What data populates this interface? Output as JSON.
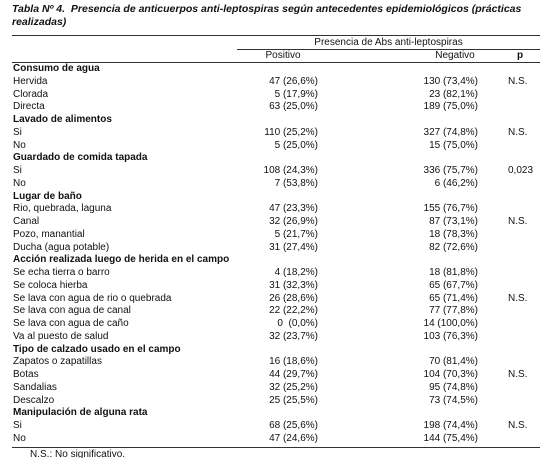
{
  "title": {
    "label": "Tabla Nº 4.",
    "text": "Presencia de anticuerpos anti-leptospiras según antecedentes epidemiológicos (prácticas realizadas)"
  },
  "header": {
    "group": "Presencia de Abs anti-leptospiras",
    "positivo": "Positivo",
    "negativo": "Negativo",
    "p": "p"
  },
  "groups": [
    {
      "title": "Consumo de agua",
      "rows": [
        {
          "label": "Hervida",
          "positivo": "47 (26,6%)",
          "negativo": "130 (73,4%)",
          "p": "N.S."
        },
        {
          "label": "Clorada",
          "positivo": "5 (17,9%)",
          "negativo": "23 (82,1%)"
        },
        {
          "label": "Directa",
          "positivo": "63 (25,0%)",
          "negativo": "189 (75,0%)"
        }
      ]
    },
    {
      "title": "Lavado de alimentos",
      "rows": [
        {
          "label": "Si",
          "positivo": "110 (25,2%)",
          "negativo": "327 (74,8%)",
          "p": "N.S."
        },
        {
          "label": "No",
          "positivo": "5 (25,0%)",
          "negativo": "15 (75,0%)"
        }
      ]
    },
    {
      "title": "Guardado de comida tapada",
      "rows": [
        {
          "label": "Si",
          "positivo": "108 (24,3%)",
          "negativo": "336 (75,7%)",
          "p": "0,023"
        },
        {
          "label": "No",
          "positivo": "7 (53,8%)",
          "negativo": "6 (46,2%)"
        }
      ]
    },
    {
      "title": "Lugar de baño",
      "rows": [
        {
          "label": "Rio, quebrada, laguna",
          "positivo": "47 (23,3%)",
          "negativo": "155 (76,7%)"
        },
        {
          "label": "Canal",
          "positivo": "32 (26,9%)",
          "negativo": "87 (73,1%)",
          "p": "N.S."
        },
        {
          "label": "Pozo, manantial",
          "positivo": "5 (21,7%)",
          "negativo": "18 (78,3%)"
        },
        {
          "label": "Ducha (agua potable)",
          "positivo": "31 (27,4%)",
          "negativo": "82 (72,6%)"
        }
      ]
    },
    {
      "title": "Acción realizada luego de herida en el campo",
      "rows": [
        {
          "label": "Se echa tierra o barro",
          "positivo": "4 (18,2%)",
          "negativo": "18 (81,8%)"
        },
        {
          "label": "Se coloca hierba",
          "positivo": "31 (32,3%)",
          "negativo": "65 (67,7%)"
        },
        {
          "label": "Se lava con agua de rio o quebrada",
          "positivo": "26 (28,6%)",
          "negativo": "65 (71,4%)",
          "p": "N.S."
        },
        {
          "label": "Se lava con agua de canal",
          "positivo": "22 (22,2%)",
          "negativo": "77 (77,8%)"
        },
        {
          "label": "Se lava con agua de caño",
          "positivo": "0  (0,0%)",
          "negativo": "14 (100,0%)"
        },
        {
          "label": "Va al puesto de salud",
          "positivo": "32 (23,7%)",
          "negativo": "103 (76,3%)"
        }
      ]
    },
    {
      "title": "Tipo de calzado usado en el campo",
      "rows": [
        {
          "label": "Zapatos o zapatillas",
          "positivo": "16 (18,6%)",
          "negativo": "70 (81,4%)"
        },
        {
          "label": "Botas",
          "positivo": "44 (29,7%)",
          "negativo": "104 (70,3%)",
          "p": "N.S."
        },
        {
          "label": "Sandalias",
          "positivo": "32 (25,2%)",
          "negativo": "95 (74,8%)"
        },
        {
          "label": "Descalzo",
          "positivo": "25 (25,5%)",
          "negativo": "73 (74,5%)"
        }
      ]
    },
    {
      "title": "Manipulación de alguna rata",
      "rows": [
        {
          "label": "Si",
          "positivo": "68 (25,6%)",
          "negativo": "198 (74,4%)",
          "p": "N.S."
        },
        {
          "label": "No",
          "positivo": "47 (24,6%)",
          "negativo": "144 (75,4%)"
        }
      ]
    }
  ],
  "footnote": "N.S.: No significativo."
}
